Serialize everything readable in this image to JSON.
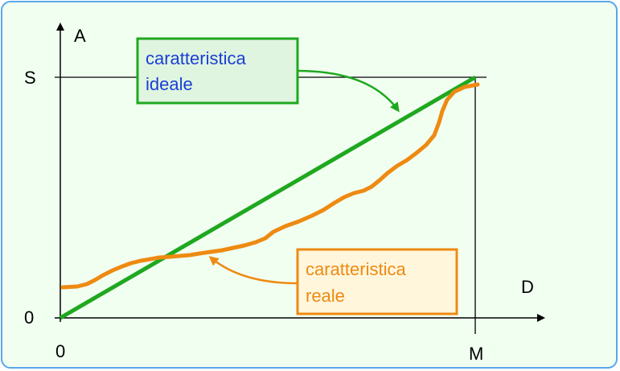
{
  "axes": {
    "y_label": "A",
    "x_label": "D",
    "y_max_label": "S",
    "y_origin_label": "0",
    "x_origin_label": "0",
    "x_max_label": "M"
  },
  "ideal_label": {
    "line1": "caratteristica",
    "line2": "ideale",
    "color": "#1a3fd6",
    "box_border": "#1fa81f",
    "box_fill": "#dff5df"
  },
  "real_label": {
    "line1": "caratteristica",
    "line2": "reale",
    "color": "#ee8a12",
    "box_border": "#ee8a12",
    "box_fill": "#fff6dc"
  },
  "colors": {
    "ideal_line": "#1fa81f",
    "real_curve": "#ee8a12",
    "axis": "#000000",
    "frame_border": "#5aa6ea",
    "background": "#f1fff1"
  }
}
